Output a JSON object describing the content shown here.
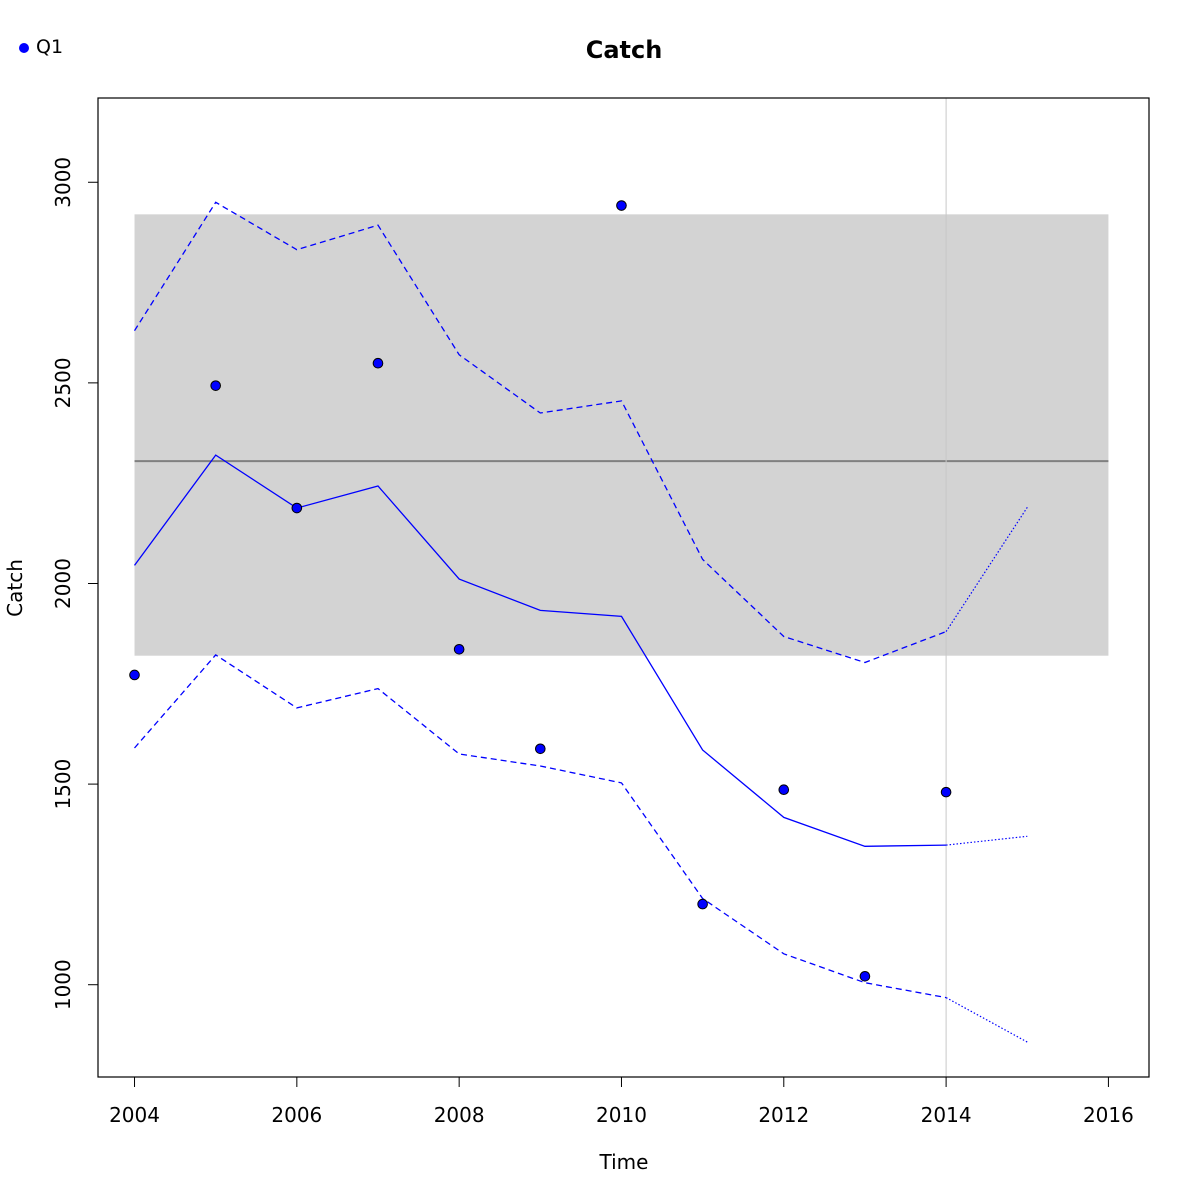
{
  "chart_data": {
    "type": "line",
    "title": "Catch",
    "xlabel": "Time",
    "ylabel": "Catch",
    "xlim": [
      2003.55,
      2016.5
    ],
    "ylim": [
      770,
      3210
    ],
    "x_ticks": [
      2004,
      2006,
      2008,
      2010,
      2012,
      2014,
      2016
    ],
    "y_ticks": [
      1000,
      1500,
      2000,
      2500,
      3000
    ],
    "grid": false,
    "legend_position": "top-left",
    "reference_band": {
      "x": [
        2004,
        2016
      ],
      "y": [
        1820,
        2920
      ],
      "color": "#d3d3d3"
    },
    "reference_line": {
      "y": 2305,
      "color": "#808080"
    },
    "vertical_line": {
      "x": 2014,
      "color": "#c8c8c8"
    },
    "observed": {
      "name": "Q1",
      "color": "#0000ff",
      "x": [
        2004,
        2005,
        2006,
        2007,
        2008,
        2009,
        2010,
        2011,
        2012,
        2013,
        2014
      ],
      "y": [
        1772,
        2493,
        2188,
        2549,
        1836,
        1588,
        2942,
        1201,
        1486,
        1021,
        1480
      ]
    },
    "fitted": {
      "color": "#0000ff",
      "x": [
        2004,
        2005,
        2006,
        2007,
        2008,
        2009,
        2010,
        2011,
        2012,
        2013,
        2014
      ],
      "y": [
        2045,
        2320,
        2188,
        2243,
        2011,
        1933,
        1918,
        1585,
        1417,
        1345,
        1348
      ]
    },
    "upper": {
      "color": "#0000ff",
      "x": [
        2004,
        2005,
        2006,
        2007,
        2008,
        2009,
        2010,
        2011,
        2012,
        2013,
        2014
      ],
      "y": [
        2630,
        2950,
        2832,
        2893,
        2570,
        2425,
        2455,
        2060,
        1868,
        1803,
        1880
      ]
    },
    "lower": {
      "color": "#0000ff",
      "x": [
        2004,
        2005,
        2006,
        2007,
        2008,
        2009,
        2010,
        2011,
        2012,
        2013,
        2014
      ],
      "y": [
        1590,
        1822,
        1690,
        1738,
        1575,
        1545,
        1503,
        1215,
        1077,
        1005,
        968
      ]
    },
    "forecast": {
      "color": "#0000ff",
      "x": [
        2014,
        2015
      ],
      "fitted": [
        1348,
        1370
      ],
      "upper": [
        1880,
        2190
      ],
      "lower": [
        968,
        857
      ]
    }
  }
}
